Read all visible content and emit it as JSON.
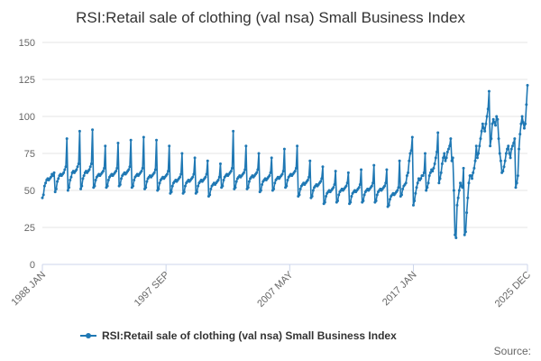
{
  "chart_data": {
    "type": "line",
    "title": "RSI:Retail sale of clothing (val nsa) Small Business Index",
    "xlabel": "",
    "ylabel": "",
    "ylim": [
      0,
      150
    ],
    "yticks": [
      0,
      25,
      50,
      75,
      100,
      125,
      150
    ],
    "x_start": "1988 JAN",
    "x_end": "2025 DEC",
    "x_tick_labels": [
      {
        "label": "1988 JAN",
        "month_index": 0
      },
      {
        "label": "1997 SEP",
        "month_index": 116
      },
      {
        "label": "2007 MAY",
        "month_index": 232
      },
      {
        "label": "2017 JAN",
        "month_index": 348
      },
      {
        "label": "2025 DEC",
        "month_index": 455
      }
    ],
    "series": [
      {
        "name": "RSI:Retail sale of clothing (val nsa) Small Business Index",
        "color": "#1f78b4",
        "frequency": "monthly",
        "annual_profiles": [
          {
            "year": 1988,
            "values": [
              45,
              47,
              53,
              55,
              57,
              58,
              57,
              58,
              59,
              61,
              60,
              62
            ]
          },
          {
            "year": 1989,
            "values": [
              49,
              51,
              56,
              58,
              60,
              61,
              60,
              61,
              62,
              64,
              66,
              85
            ]
          },
          {
            "year": 1990,
            "values": [
              50,
              52,
              57,
              59,
              62,
              63,
              62,
              63,
              64,
              66,
              68,
              90
            ]
          },
          {
            "year": 1991,
            "values": [
              51,
              53,
              58,
              60,
              62,
              63,
              62,
              63,
              64,
              66,
              68,
              91
            ]
          },
          {
            "year": 1992,
            "values": [
              52,
              53,
              57,
              59,
              60,
              61,
              60,
              61,
              62,
              63,
              65,
              80
            ]
          },
          {
            "year": 1993,
            "values": [
              52,
              53,
              57,
              59,
              60,
              61,
              60,
              61,
              62,
              63,
              65,
              82
            ]
          },
          {
            "year": 1994,
            "values": [
              53,
              54,
              58,
              60,
              61,
              62,
              61,
              62,
              63,
              64,
              66,
              84
            ]
          },
          {
            "year": 1995,
            "values": [
              52,
              53,
              57,
              59,
              60,
              61,
              60,
              61,
              62,
              63,
              65,
              86
            ]
          },
          {
            "year": 1996,
            "values": [
              51,
              52,
              56,
              58,
              59,
              60,
              59,
              60,
              61,
              62,
              64,
              84
            ]
          },
          {
            "year": 1997,
            "values": [
              50,
              51,
              55,
              57,
              58,
              59,
              58,
              59,
              60,
              61,
              63,
              80
            ]
          },
          {
            "year": 1998,
            "values": [
              48,
              49,
              53,
              55,
              56,
              57,
              56,
              57,
              58,
              59,
              61,
              75
            ]
          },
          {
            "year": 1999,
            "values": [
              48,
              49,
              53,
              55,
              56,
              57,
              56,
              57,
              58,
              59,
              61,
              72
            ]
          },
          {
            "year": 2000,
            "values": [
              48,
              49,
              53,
              55,
              56,
              57,
              56,
              57,
              58,
              59,
              61,
              70
            ]
          },
          {
            "year": 2001,
            "values": [
              46,
              47,
              51,
              53,
              54,
              55,
              54,
              55,
              56,
              57,
              59,
              68
            ]
          },
          {
            "year": 2002,
            "values": [
              52,
              53,
              57,
              59,
              60,
              61,
              60,
              61,
              62,
              63,
              65,
              90
            ]
          },
          {
            "year": 2003,
            "values": [
              51,
              52,
              56,
              58,
              59,
              60,
              59,
              60,
              61,
              62,
              64,
              80
            ]
          },
          {
            "year": 2004,
            "values": [
              51,
              52,
              56,
              58,
              59,
              60,
              59,
              60,
              61,
              62,
              64,
              75
            ]
          },
          {
            "year": 2005,
            "values": [
              49,
              50,
              54,
              56,
              57,
              58,
              57,
              58,
              59,
              60,
              62,
              72
            ]
          },
          {
            "year": 2006,
            "values": [
              50,
              51,
              55,
              57,
              58,
              59,
              58,
              59,
              60,
              61,
              63,
              78
            ]
          },
          {
            "year": 2007,
            "values": [
              52,
              53,
              57,
              59,
              60,
              61,
              60,
              61,
              62,
              63,
              65,
              80
            ]
          },
          {
            "year": 2008,
            "values": [
              46,
              47,
              51,
              53,
              54,
              55,
              54,
              55,
              56,
              57,
              59,
              70
            ]
          },
          {
            "year": 2009,
            "values": [
              45,
              46,
              50,
              52,
              53,
              54,
              53,
              54,
              55,
              56,
              58,
              66
            ]
          },
          {
            "year": 2010,
            "values": [
              41,
              42,
              46,
              48,
              49,
              50,
              49,
              50,
              51,
              52,
              54,
              63
            ]
          },
          {
            "year": 2011,
            "values": [
              42,
              43,
              47,
              49,
              50,
              51,
              50,
              51,
              52,
              53,
              55,
              62
            ]
          },
          {
            "year": 2012,
            "values": [
              41,
              42,
              46,
              48,
              49,
              50,
              49,
              50,
              51,
              52,
              54,
              64
            ]
          },
          {
            "year": 2013,
            "values": [
              42,
              43,
              47,
              49,
              50,
              51,
              50,
              51,
              52,
              53,
              55,
              67
            ]
          },
          {
            "year": 2014,
            "values": [
              42,
              43,
              47,
              49,
              50,
              51,
              50,
              51,
              52,
              53,
              55,
              64
            ]
          },
          {
            "year": 2015,
            "values": [
              39,
              40,
              44,
              46,
              47,
              48,
              47,
              48,
              49,
              50,
              52,
              70
            ]
          },
          {
            "year": 2016,
            "values": [
              46,
              47,
              51,
              53,
              54,
              55,
              60,
              62,
              70,
              75,
              77,
              86
            ]
          },
          {
            "year": 2017,
            "values": [
              40,
              43,
              48,
              52,
              55,
              58,
              57,
              58,
              60,
              60,
              62,
              75
            ]
          },
          {
            "year": 2018,
            "values": [
              50,
              52,
              55,
              60,
              62,
              64,
              63,
              65,
              68,
              72,
              76,
              89
            ]
          },
          {
            "year": 2019,
            "values": [
              55,
              58,
              62,
              68,
              72,
              75,
              70,
              72,
              76,
              78,
              80,
              85
            ]
          },
          {
            "year": 2020,
            "values": [
              70,
              72,
              50,
              20,
              18,
              40,
              45,
              50,
              55,
              53,
              52,
              65
            ]
          },
          {
            "year": 2021,
            "values": [
              20,
              22,
              35,
              45,
              55,
              60,
              60,
              58,
              62,
              65,
              70,
              80
            ]
          },
          {
            "year": 2022,
            "values": [
              72,
              75,
              80,
              85,
              90,
              95,
              92,
              90,
              95,
              100,
              105,
              117
            ]
          },
          {
            "year": 2023,
            "values": [
              80,
              85,
              95,
              98,
              96,
              94,
              100,
              98,
              85,
              75,
              70,
              62
            ]
          },
          {
            "year": 2024,
            "values": [
              63,
              66,
              70,
              75,
              78,
              80,
              75,
              72,
              78,
              80,
              82,
              85
            ]
          },
          {
            "year": 2025,
            "values": [
              52,
              55,
              60,
              78,
              88,
              95,
              100,
              96,
              92,
              95,
              108,
              121
            ]
          }
        ]
      }
    ],
    "legend": {
      "position": "bottom-center",
      "label": "RSI:Retail sale of clothing (val nsa) Small Business Index"
    }
  },
  "footer": {
    "source_label": "Source:"
  }
}
